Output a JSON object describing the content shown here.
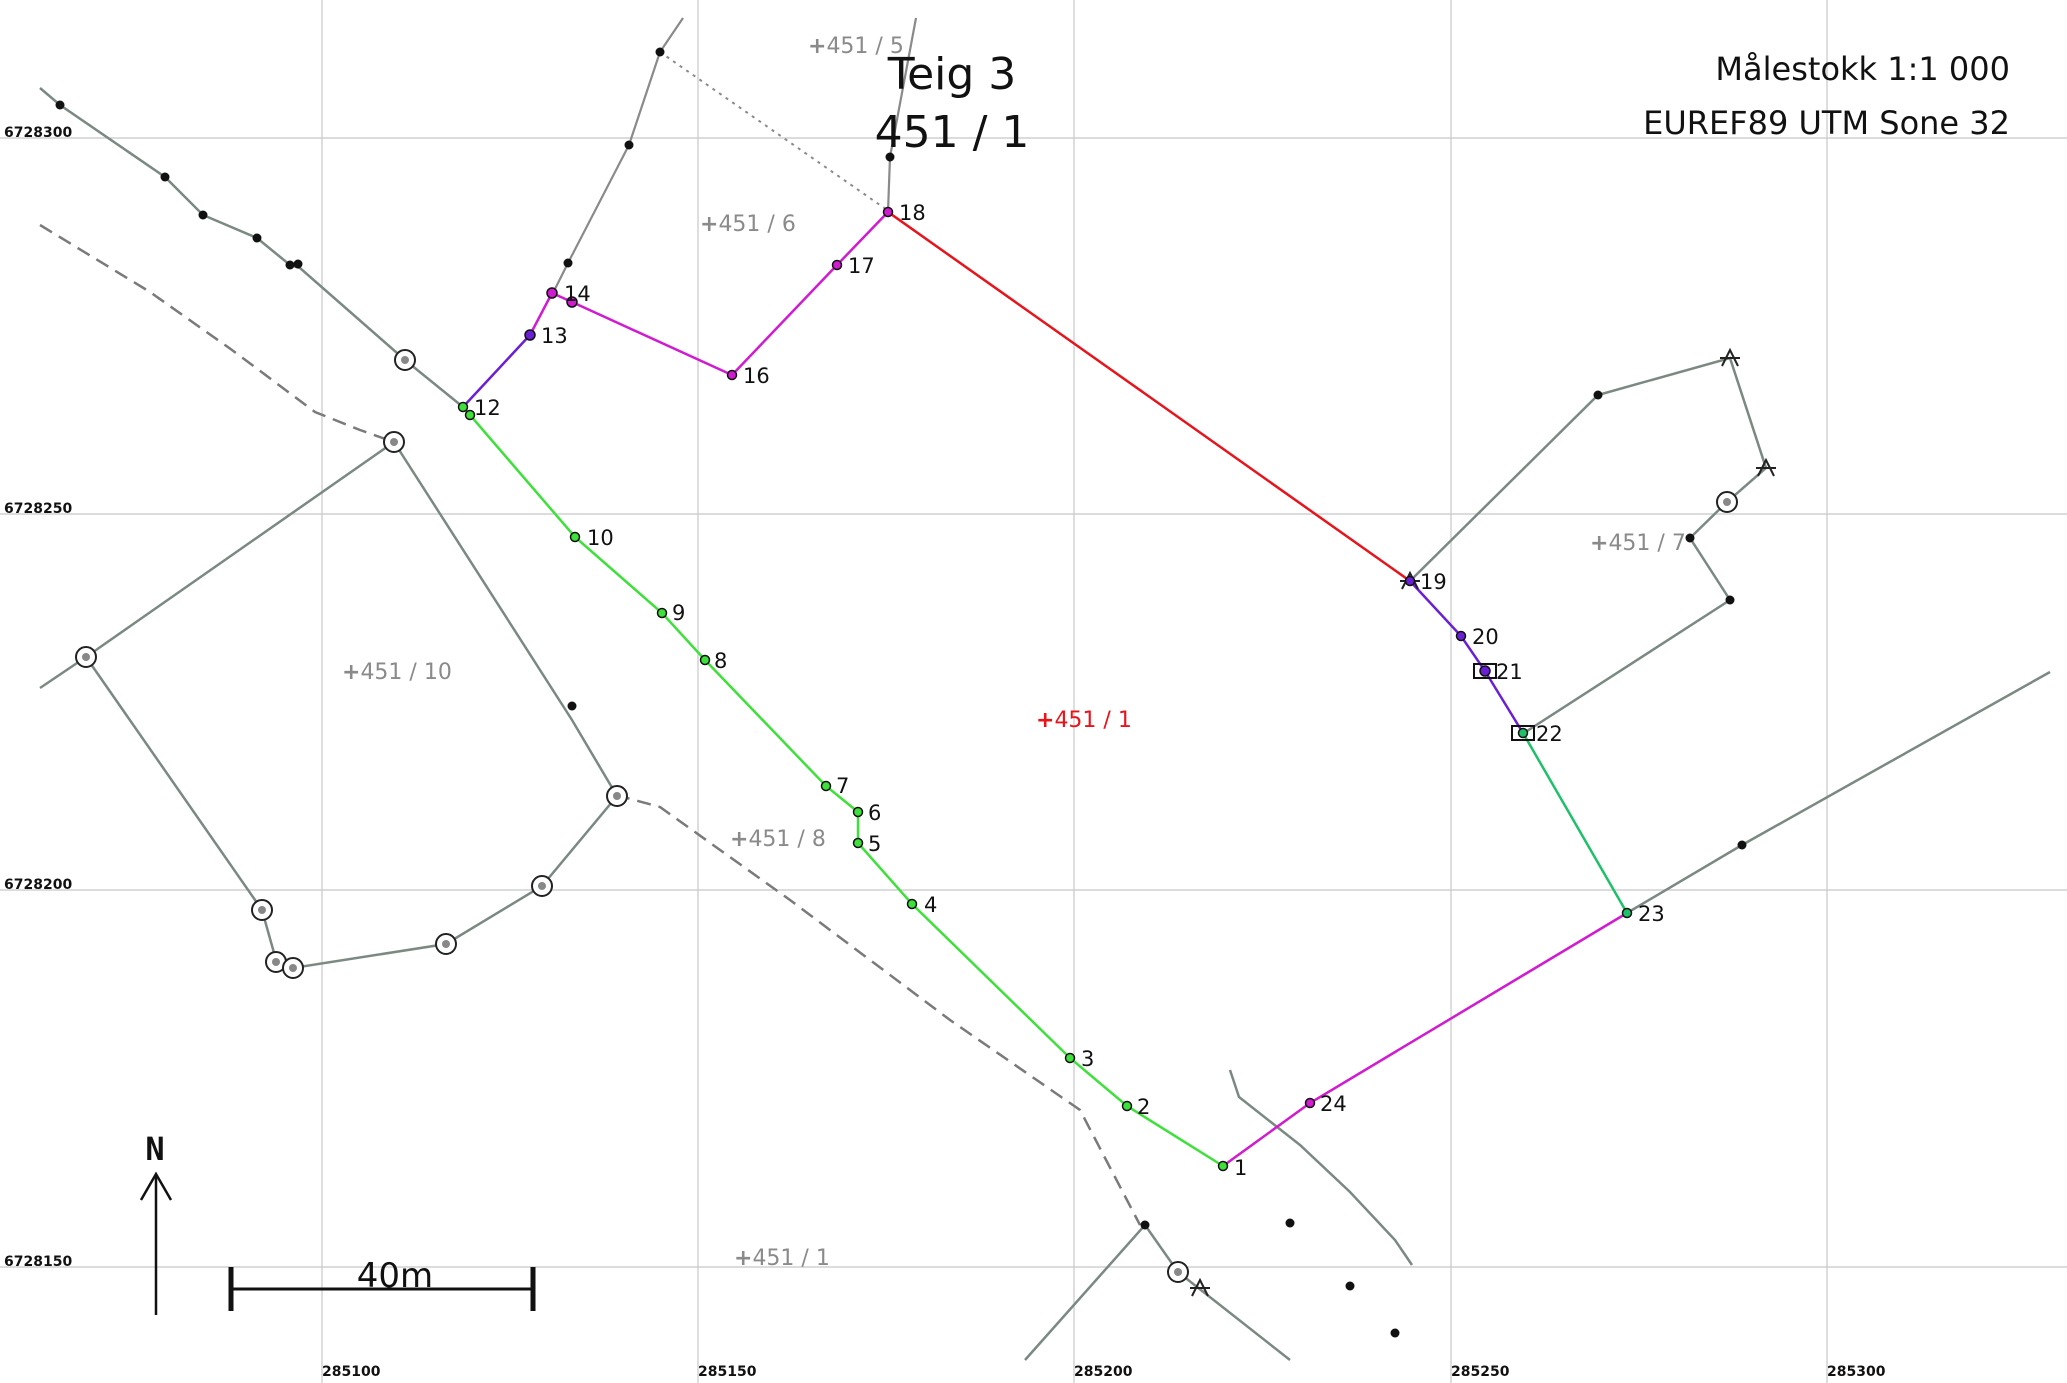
{
  "title": {
    "teig": "Teig 3",
    "parcel": "451 / 1"
  },
  "info": {
    "scale": "Målestokk 1:1 000",
    "crs": "EUREF89 UTM Sone 32"
  },
  "north_label": "N",
  "scale_bar_label": "40m",
  "grid": {
    "easting_labels": [
      "285100",
      "285150",
      "285200",
      "285250",
      "285300"
    ],
    "northing_labels": [
      "6728300",
      "6728250",
      "6728200",
      "6728150"
    ]
  },
  "main_parcel_label": "451 / 1",
  "neighbor_parcels": [
    "451 / 5",
    "451 / 6",
    "451 / 7",
    "451 / 8",
    "451 / 10",
    "451 / 1"
  ],
  "boundary_points": [
    "1",
    "2",
    "3",
    "4",
    "5",
    "6",
    "7",
    "8",
    "9",
    "10",
    "12",
    "13",
    "14",
    "16",
    "17",
    "18",
    "19",
    "20",
    "21",
    "22",
    "23",
    "24"
  ],
  "colors": {
    "segment_green": "#3ee03a",
    "segment_red": "#e8141c",
    "segment_magenta": "#d11bd1",
    "segment_purple": "#6a1fd6",
    "segment_teal": "#1fc06a",
    "neighbor_line": "#7a8a80",
    "parcel_label_red": "#e8141c",
    "parcel_label_grey": "#8a8a8a"
  }
}
